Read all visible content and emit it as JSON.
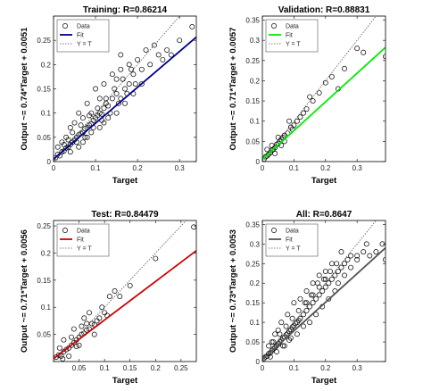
{
  "chart_data": [
    {
      "type": "scatter",
      "title": "Training: R=0.86214",
      "xlabel": "Target",
      "ylabel": "Output ~= 0.74*Target + 0.0051",
      "xlim": [
        0,
        0.34
      ],
      "ylim": [
        0,
        0.3
      ],
      "xticks": [
        0,
        0.1,
        0.2,
        0.3
      ],
      "yticks": [
        0,
        0.05,
        0.1,
        0.15,
        0.2,
        0.25
      ],
      "fit": {
        "slope": 0.74,
        "intercept": 0.0051,
        "color": "#00008b"
      },
      "legend": [
        "Data",
        "Fit",
        "Y = T"
      ],
      "legend_position": "top-left",
      "grid": false,
      "points": [
        [
          0.005,
          0.008
        ],
        [
          0.01,
          0.015
        ],
        [
          0.015,
          0.012
        ],
        [
          0.02,
          0.02
        ],
        [
          0.025,
          0.022
        ],
        [
          0.03,
          0.028
        ],
        [
          0.035,
          0.03
        ],
        [
          0.04,
          0.035
        ],
        [
          0.045,
          0.04
        ],
        [
          0.05,
          0.045
        ],
        [
          0.055,
          0.05
        ],
        [
          0.06,
          0.055
        ],
        [
          0.065,
          0.058
        ],
        [
          0.07,
          0.06
        ],
        [
          0.075,
          0.068
        ],
        [
          0.08,
          0.07
        ],
        [
          0.085,
          0.075
        ],
        [
          0.09,
          0.078
        ],
        [
          0.095,
          0.085
        ],
        [
          0.1,
          0.09
        ],
        [
          0.105,
          0.095
        ],
        [
          0.11,
          0.1
        ],
        [
          0.115,
          0.098
        ],
        [
          0.12,
          0.11
        ],
        [
          0.125,
          0.12
        ],
        [
          0.13,
          0.115
        ],
        [
          0.14,
          0.13
        ],
        [
          0.15,
          0.14
        ],
        [
          0.16,
          0.13
        ],
        [
          0.17,
          0.15
        ],
        [
          0.18,
          0.16
        ],
        [
          0.19,
          0.18
        ],
        [
          0.2,
          0.21
        ],
        [
          0.21,
          0.19
        ],
        [
          0.22,
          0.23
        ],
        [
          0.23,
          0.2
        ],
        [
          0.24,
          0.24
        ],
        [
          0.25,
          0.22
        ],
        [
          0.26,
          0.21
        ],
        [
          0.27,
          0.23
        ],
        [
          0.28,
          0.22
        ],
        [
          0.3,
          0.25
        ],
        [
          0.33,
          0.278
        ],
        [
          0.04,
          0.07
        ],
        [
          0.06,
          0.1
        ],
        [
          0.08,
          0.12
        ],
        [
          0.1,
          0.15
        ],
        [
          0.12,
          0.16
        ],
        [
          0.14,
          0.18
        ],
        [
          0.16,
          0.22
        ],
        [
          0.18,
          0.2
        ],
        [
          0.07,
          0.04
        ],
        [
          0.09,
          0.06
        ],
        [
          0.11,
          0.07
        ],
        [
          0.13,
          0.09
        ],
        [
          0.15,
          0.1
        ],
        [
          0.17,
          0.12
        ],
        [
          0.02,
          0.04
        ],
        [
          0.03,
          0.05
        ],
        [
          0.05,
          0.08
        ],
        [
          0.01,
          0.03
        ],
        [
          0.04,
          0.02
        ],
        [
          0.06,
          0.03
        ],
        [
          0.08,
          0.05
        ],
        [
          0.12,
          0.08
        ],
        [
          0.16,
          0.19
        ],
        [
          0.15,
          0.17
        ],
        [
          0.19,
          0.14
        ],
        [
          0.21,
          0.16
        ],
        [
          0.11,
          0.13
        ],
        [
          0.09,
          0.1
        ],
        [
          0.07,
          0.09
        ],
        [
          0.025,
          0.035
        ],
        [
          0.035,
          0.045
        ],
        [
          0.045,
          0.06
        ],
        [
          0.055,
          0.04
        ],
        [
          0.065,
          0.075
        ],
        [
          0.075,
          0.05
        ],
        [
          0.085,
          0.095
        ],
        [
          0.095,
          0.07
        ],
        [
          0.105,
          0.11
        ],
        [
          0.115,
          0.085
        ],
        [
          0.125,
          0.13
        ],
        [
          0.135,
          0.1
        ],
        [
          0.145,
          0.15
        ],
        [
          0.155,
          0.12
        ],
        [
          0.165,
          0.17
        ],
        [
          0.175,
          0.14
        ],
        [
          0.185,
          0.19
        ],
        [
          0.195,
          0.16
        ]
      ]
    },
    {
      "type": "scatter",
      "title": "Validation: R=0.88831",
      "xlabel": "Target",
      "ylabel": "Output ~= 0.71*Target + 0.0057",
      "xlim": [
        0,
        0.39
      ],
      "ylim": [
        0,
        0.36
      ],
      "xticks": [
        0,
        0.1,
        0.2,
        0.3
      ],
      "yticks": [
        0,
        0.05,
        0.1,
        0.15,
        0.2,
        0.25,
        0.3,
        0.35
      ],
      "fit": {
        "slope": 0.71,
        "intercept": 0.0057,
        "color": "#00ee00"
      },
      "legend": [
        "Data",
        "Fit",
        "Y = T"
      ],
      "legend_position": "top-left",
      "grid": false,
      "points": [
        [
          0.005,
          0.006
        ],
        [
          0.01,
          0.012
        ],
        [
          0.015,
          0.014
        ],
        [
          0.02,
          0.018
        ],
        [
          0.025,
          0.022
        ],
        [
          0.03,
          0.028
        ],
        [
          0.035,
          0.03
        ],
        [
          0.04,
          0.035
        ],
        [
          0.045,
          0.042
        ],
        [
          0.05,
          0.045
        ],
        [
          0.055,
          0.05
        ],
        [
          0.06,
          0.055
        ],
        [
          0.065,
          0.06
        ],
        [
          0.07,
          0.065
        ],
        [
          0.08,
          0.07
        ],
        [
          0.09,
          0.085
        ],
        [
          0.1,
          0.09
        ],
        [
          0.11,
          0.1
        ],
        [
          0.12,
          0.11
        ],
        [
          0.14,
          0.13
        ],
        [
          0.16,
          0.15
        ],
        [
          0.18,
          0.17
        ],
        [
          0.2,
          0.195
        ],
        [
          0.22,
          0.21
        ],
        [
          0.24,
          0.18
        ],
        [
          0.26,
          0.23
        ],
        [
          0.3,
          0.28
        ],
        [
          0.32,
          0.27
        ],
        [
          0.39,
          0.26
        ],
        [
          0.015,
          0.03
        ],
        [
          0.03,
          0.04
        ],
        [
          0.05,
          0.06
        ],
        [
          0.07,
          0.05
        ],
        [
          0.085,
          0.1
        ],
        [
          0.095,
          0.08
        ],
        [
          0.13,
          0.12
        ],
        [
          0.15,
          0.16
        ],
        [
          0.04,
          0.02
        ],
        [
          0.06,
          0.04
        ]
      ]
    },
    {
      "type": "scatter",
      "title": "Test: R=0.84479",
      "xlabel": "Target",
      "ylabel": "Output ~= 0.71*Target + 0.0056",
      "xlim": [
        0,
        0.28
      ],
      "ylim": [
        0,
        0.26
      ],
      "xticks": [
        0.05,
        0.1,
        0.15,
        0.2,
        0.25
      ],
      "yticks": [
        0.05,
        0.1,
        0.15,
        0.2,
        0.25
      ],
      "fit": {
        "slope": 0.71,
        "intercept": 0.0056,
        "color": "#cc0000"
      },
      "legend": [
        "Data",
        "Fit",
        "Y = T"
      ],
      "legend_position": "top-left",
      "grid": false,
      "points": [
        [
          0.005,
          0.008
        ],
        [
          0.01,
          0.012
        ],
        [
          0.015,
          0.01
        ],
        [
          0.02,
          0.018
        ],
        [
          0.025,
          0.022
        ],
        [
          0.03,
          0.025
        ],
        [
          0.035,
          0.03
        ],
        [
          0.04,
          0.035
        ],
        [
          0.045,
          0.04
        ],
        [
          0.05,
          0.045
        ],
        [
          0.055,
          0.05
        ],
        [
          0.06,
          0.052
        ],
        [
          0.065,
          0.058
        ],
        [
          0.07,
          0.06
        ],
        [
          0.075,
          0.07
        ],
        [
          0.08,
          0.068
        ],
        [
          0.085,
          0.075
        ],
        [
          0.09,
          0.08
        ],
        [
          0.1,
          0.09
        ],
        [
          0.11,
          0.12
        ],
        [
          0.12,
          0.13
        ],
        [
          0.13,
          0.12
        ],
        [
          0.15,
          0.14
        ],
        [
          0.2,
          0.19
        ],
        [
          0.275,
          0.248
        ],
        [
          0.02,
          0.04
        ],
        [
          0.04,
          0.06
        ],
        [
          0.06,
          0.08
        ],
        [
          0.07,
          0.09
        ],
        [
          0.03,
          0.01
        ],
        [
          0.05,
          0.03
        ],
        [
          0.08,
          0.05
        ],
        [
          0.095,
          0.1
        ],
        [
          0.105,
          0.085
        ],
        [
          0.065,
          0.07
        ],
        [
          0.035,
          0.045
        ],
        [
          0.045,
          0.028
        ],
        [
          0.055,
          0.065
        ],
        [
          0.012,
          0.025
        ],
        [
          0.018,
          0.005
        ]
      ]
    },
    {
      "type": "scatter",
      "title": "All: R=0.8647",
      "xlabel": "Target",
      "ylabel": "Output ~= 0.73*Target + 0.0053",
      "xlim": [
        0,
        0.39
      ],
      "ylim": [
        0,
        0.36
      ],
      "xticks": [
        0,
        0.1,
        0.2,
        0.3
      ],
      "yticks": [
        0,
        0.05,
        0.1,
        0.15,
        0.2,
        0.25,
        0.3,
        0.35
      ],
      "fit": {
        "slope": 0.73,
        "intercept": 0.0053,
        "color": "#555555"
      },
      "legend": [
        "Data",
        "Fit",
        "Y = T"
      ],
      "legend_position": "top-left",
      "grid": false,
      "points": [
        [
          0.005,
          0.008
        ],
        [
          0.01,
          0.012
        ],
        [
          0.015,
          0.014
        ],
        [
          0.02,
          0.02
        ],
        [
          0.025,
          0.022
        ],
        [
          0.03,
          0.028
        ],
        [
          0.035,
          0.032
        ],
        [
          0.04,
          0.036
        ],
        [
          0.045,
          0.04
        ],
        [
          0.05,
          0.045
        ],
        [
          0.055,
          0.05
        ],
        [
          0.06,
          0.055
        ],
        [
          0.065,
          0.06
        ],
        [
          0.07,
          0.062
        ],
        [
          0.075,
          0.068
        ],
        [
          0.08,
          0.072
        ],
        [
          0.085,
          0.078
        ],
        [
          0.09,
          0.082
        ],
        [
          0.095,
          0.088
        ],
        [
          0.1,
          0.092
        ],
        [
          0.105,
          0.098
        ],
        [
          0.11,
          0.1
        ],
        [
          0.115,
          0.105
        ],
        [
          0.12,
          0.11
        ],
        [
          0.13,
          0.12
        ],
        [
          0.14,
          0.13
        ],
        [
          0.15,
          0.14
        ],
        [
          0.16,
          0.15
        ],
        [
          0.17,
          0.16
        ],
        [
          0.18,
          0.17
        ],
        [
          0.19,
          0.18
        ],
        [
          0.2,
          0.19
        ],
        [
          0.21,
          0.2
        ],
        [
          0.22,
          0.21
        ],
        [
          0.23,
          0.22
        ],
        [
          0.24,
          0.23
        ],
        [
          0.25,
          0.24
        ],
        [
          0.26,
          0.25
        ],
        [
          0.27,
          0.26
        ],
        [
          0.28,
          0.24
        ],
        [
          0.3,
          0.27
        ],
        [
          0.32,
          0.28
        ],
        [
          0.34,
          0.27
        ],
        [
          0.36,
          0.28
        ],
        [
          0.38,
          0.3
        ],
        [
          0.39,
          0.26
        ],
        [
          0.04,
          0.07
        ],
        [
          0.06,
          0.1
        ],
        [
          0.08,
          0.12
        ],
        [
          0.1,
          0.15
        ],
        [
          0.12,
          0.16
        ],
        [
          0.14,
          0.18
        ],
        [
          0.16,
          0.2
        ],
        [
          0.18,
          0.22
        ],
        [
          0.2,
          0.23
        ],
        [
          0.22,
          0.25
        ],
        [
          0.07,
          0.04
        ],
        [
          0.09,
          0.06
        ],
        [
          0.11,
          0.07
        ],
        [
          0.13,
          0.09
        ],
        [
          0.15,
          0.1
        ],
        [
          0.17,
          0.12
        ],
        [
          0.19,
          0.14
        ],
        [
          0.21,
          0.16
        ],
        [
          0.23,
          0.18
        ],
        [
          0.02,
          0.04
        ],
        [
          0.03,
          0.05
        ],
        [
          0.05,
          0.08
        ],
        [
          0.025,
          0.012
        ],
        [
          0.045,
          0.025
        ],
        [
          0.065,
          0.04
        ],
        [
          0.085,
          0.055
        ],
        [
          0.14,
          0.15
        ],
        [
          0.16,
          0.17
        ],
        [
          0.18,
          0.19
        ],
        [
          0.2,
          0.21
        ],
        [
          0.24,
          0.2
        ],
        [
          0.26,
          0.22
        ],
        [
          0.28,
          0.27
        ],
        [
          0.3,
          0.26
        ],
        [
          0.33,
          0.3
        ],
        [
          0.035,
          0.05
        ],
        [
          0.055,
          0.07
        ],
        [
          0.075,
          0.09
        ],
        [
          0.095,
          0.11
        ],
        [
          0.115,
          0.13
        ],
        [
          0.135,
          0.15
        ],
        [
          0.155,
          0.17
        ],
        [
          0.175,
          0.2
        ],
        [
          0.195,
          0.21
        ],
        [
          0.215,
          0.23
        ],
        [
          0.235,
          0.25
        ],
        [
          0.25,
          0.28
        ]
      ]
    }
  ]
}
